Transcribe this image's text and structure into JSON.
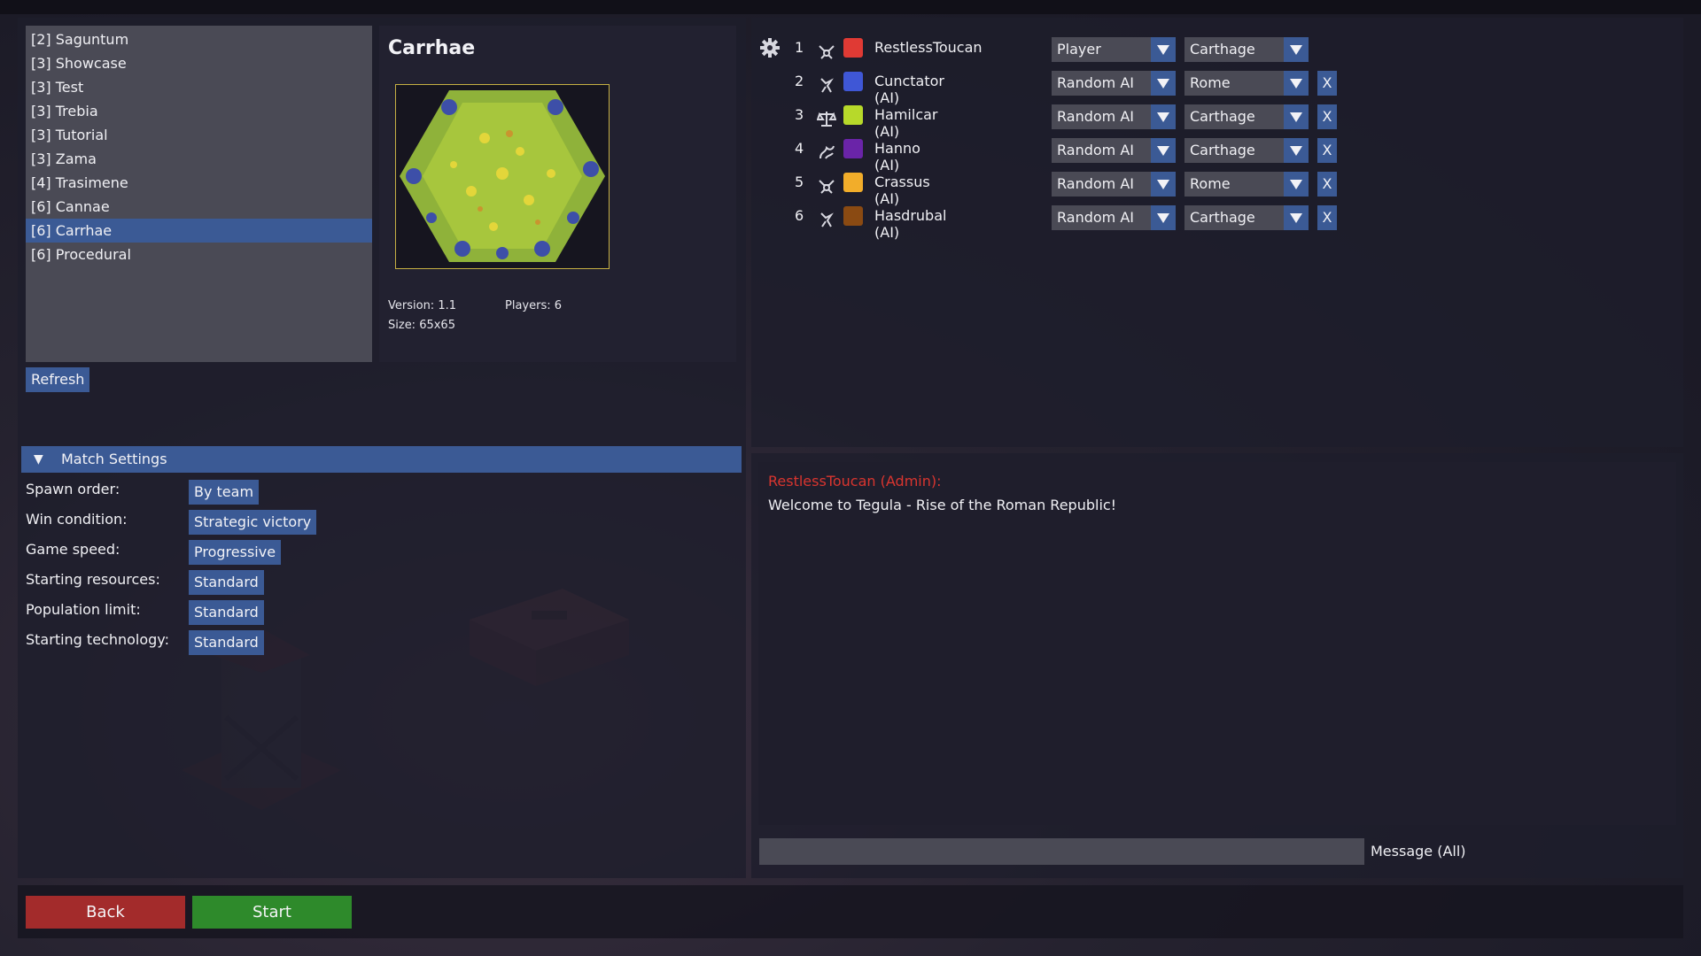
{
  "map_list": {
    "items": [
      {
        "label": "[2] Saguntum",
        "selected": false
      },
      {
        "label": "[3] Showcase",
        "selected": false
      },
      {
        "label": "[3] Test",
        "selected": false
      },
      {
        "label": "[3] Trebia",
        "selected": false
      },
      {
        "label": "[3] Tutorial",
        "selected": false
      },
      {
        "label": "[3] Zama",
        "selected": false
      },
      {
        "label": "[4] Trasimene",
        "selected": false
      },
      {
        "label": "[6] Cannae",
        "selected": false
      },
      {
        "label": "[6] Carrhae",
        "selected": true
      },
      {
        "label": "[6] Procedural",
        "selected": false
      }
    ],
    "refresh_label": "Refresh"
  },
  "map_preview": {
    "title": "Carrhae",
    "version": "Version: 1.1",
    "players": "Players: 6",
    "size": "Size: 65x65"
  },
  "match_settings": {
    "header": "Match Settings",
    "rows": [
      {
        "label": "Spawn order:",
        "value": "By team"
      },
      {
        "label": "Win condition:",
        "value": "Strategic victory"
      },
      {
        "label": "Game speed:",
        "value": "Progressive"
      },
      {
        "label": "Starting resources:",
        "value": "Standard"
      },
      {
        "label": "Population limit:",
        "value": "Standard"
      },
      {
        "label": "Starting technology:",
        "value": "Standard"
      }
    ]
  },
  "players": [
    {
      "num": "1",
      "icon": "horned-crest-icon",
      "color": "#e03a34",
      "name": "RestlessToucan",
      "type": "Player",
      "civ": "Carthage",
      "removable": false
    },
    {
      "num": "2",
      "icon": "rearing-beast-icon",
      "color": "#3f57d6",
      "name": "Cunctator (AI)",
      "type": "Random AI",
      "civ": "Rome",
      "removable": true
    },
    {
      "num": "3",
      "icon": "scales-icon",
      "color": "#b7d92a",
      "name": "Hamilcar (AI)",
      "type": "Random AI",
      "civ": "Carthage",
      "removable": true
    },
    {
      "num": "4",
      "icon": "dragon-icon",
      "color": "#6a24a8",
      "name": "Hanno (AI)",
      "type": "Random AI",
      "civ": "Carthage",
      "removable": true
    },
    {
      "num": "5",
      "icon": "horned-crest-icon",
      "color": "#f2ad2a",
      "name": "Crassus (AI)",
      "type": "Random AI",
      "civ": "Rome",
      "removable": true
    },
    {
      "num": "6",
      "icon": "rearing-beast-icon",
      "color": "#8a4a12",
      "name": "Hasdrubal (AI)",
      "type": "Random AI",
      "civ": "Carthage",
      "removable": true
    }
  ],
  "remove_label": "X",
  "chat": {
    "sender": "RestlessToucan (Admin):",
    "message": "Welcome to Tegula - Rise of the Roman Republic!",
    "input_value": "",
    "input_label": "Message (All)"
  },
  "bottom": {
    "back_label": "Back",
    "start_label": "Start"
  },
  "colors": {
    "accent_blue": "#3b5a95",
    "back_red": "#a32b2b",
    "start_green": "#2e8a2b",
    "admin_red": "#d9352f"
  }
}
